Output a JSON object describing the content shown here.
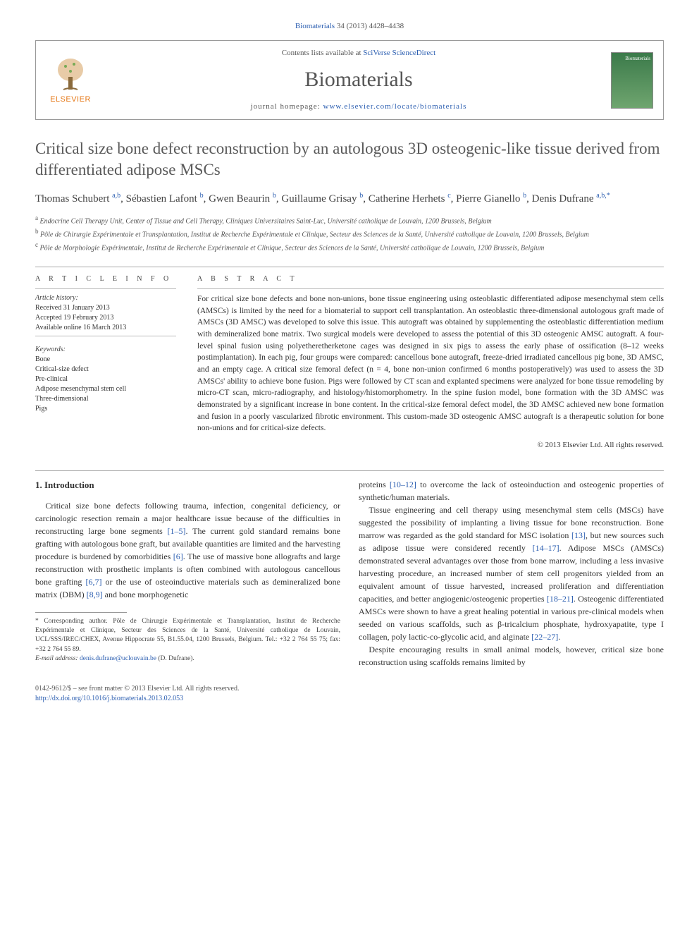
{
  "citation": {
    "journal_link": "Biomaterials",
    "vol_pages": " 34 (2013) 4428–4438"
  },
  "header": {
    "contents_prefix": "Contents lists available at ",
    "contents_link": "SciVerse ScienceDirect",
    "journal_name": "Biomaterials",
    "homepage_prefix": "journal homepage: ",
    "homepage_link": "www.elsevier.com/locate/biomaterials",
    "elsevier_label": "ELSEVIER",
    "cover_label": "Biomaterials"
  },
  "title": "Critical size bone defect reconstruction by an autologous 3D osteogenic-like tissue derived from differentiated adipose MSCs",
  "authors_html": "Thomas Schubert <sup>a,b</sup>, Sébastien Lafont <sup>b</sup>, Gwen Beaurin <sup>b</sup>, Guillaume Grisay <sup>b</sup>, Catherine Herhets <sup>c</sup>, Pierre Gianello <sup>b</sup>, Denis Dufrane <sup>a,b,*</sup>",
  "affiliations": {
    "a": "Endocrine Cell Therapy Unit, Center of Tissue and Cell Therapy, Cliniques Universitaires Saint-Luc, Université catholique de Louvain, 1200 Brussels, Belgium",
    "b": "Pôle de Chirurgie Expérimentale et Transplantation, Institut de Recherche Expérimentale et Clinique, Secteur des Sciences de la Santé, Université catholique de Louvain, 1200 Brussels, Belgium",
    "c": "Pôle de Morphologie Expérimentale, Institut de Recherche Expérimentale et Clinique, Secteur des Sciences de la Santé, Université catholique de Louvain, 1200 Brussels, Belgium"
  },
  "article_info": {
    "heading": "A R T I C L E  I N F O",
    "history_label": "Article history:",
    "received": "Received 31 January 2013",
    "accepted": "Accepted 19 February 2013",
    "online": "Available online 16 March 2013",
    "keywords_label": "Keywords:",
    "keywords": [
      "Bone",
      "Critical-size defect",
      "Pre-clinical",
      "Adipose mesenchymal stem cell",
      "Three-dimensional",
      "Pigs"
    ]
  },
  "abstract": {
    "heading": "A B S T R A C T",
    "text": "For critical size bone defects and bone non-unions, bone tissue engineering using osteoblastic differentiated adipose mesenchymal stem cells (AMSCs) is limited by the need for a biomaterial to support cell transplantation. An osteoblastic three-dimensional autologous graft made of AMSCs (3D AMSC) was developed to solve this issue. This autograft was obtained by supplementing the osteoblastic differentiation medium with demineralized bone matrix. Two surgical models were developed to assess the potential of this 3D osteogenic AMSC autograft. A four-level spinal fusion using polyetheretherketone cages was designed in six pigs to assess the early phase of ossification (8–12 weeks postimplantation). In each pig, four groups were compared: cancellous bone autograft, freeze-dried irradiated cancellous pig bone, 3D AMSC, and an empty cage. A critical size femoral defect (n = 4, bone non-union confirmed 6 months postoperatively) was used to assess the 3D AMSCs' ability to achieve bone fusion. Pigs were followed by CT scan and explanted specimens were analyzed for bone tissue remodeling by micro-CT scan, micro-radiography, and histology/histomorphometry. In the spine fusion model, bone formation with the 3D AMSC was demonstrated by a significant increase in bone content. In the critical-size femoral defect model, the 3D AMSC achieved new bone formation and fusion in a poorly vascularized fibrotic environment. This custom-made 3D osteogenic AMSC autograft is a therapeutic solution for bone non-unions and for critical-size defects.",
    "copyright": "© 2013 Elsevier Ltd. All rights reserved."
  },
  "intro": {
    "heading": "1. Introduction",
    "p1_a": "Critical size bone defects following trauma, infection, congenital deficiency, or carcinologic resection remain a major healthcare issue because of the difficulties in reconstructing large bone segments ",
    "p1_ref1": "[1–5]",
    "p1_b": ". The current gold standard remains bone grafting with autologous bone graft, but available quantities are limited and the harvesting procedure is burdened by comorbidities ",
    "p1_ref2": "[6]",
    "p1_c": ". The use of massive bone allografts and large reconstruction with prosthetic implants is often combined with autologous cancellous bone grafting ",
    "p1_ref3": "[6,7]",
    "p1_d": " or the use of osteoinductive materials such as demineralized bone matrix (DBM) ",
    "p1_ref4": "[8,9]",
    "p1_e": " and bone morphogenetic",
    "p2_a": "proteins ",
    "p2_ref1": "[10–12]",
    "p2_b": " to overcome the lack of osteoinduction and osteogenic properties of synthetic/human materials.",
    "p3_a": "Tissue engineering and cell therapy using mesenchymal stem cells (MSCs) have suggested the possibility of implanting a living tissue for bone reconstruction. Bone marrow was regarded as the gold standard for MSC isolation ",
    "p3_ref1": "[13]",
    "p3_b": ", but new sources such as adipose tissue were considered recently ",
    "p3_ref2": "[14–17]",
    "p3_c": ". Adipose MSCs (AMSCs) demonstrated several advantages over those from bone marrow, including a less invasive harvesting procedure, an increased number of stem cell progenitors yielded from an equivalent amount of tissue harvested, increased proliferation and differentiation capacities, and better angiogenic/osteogenic properties ",
    "p3_ref3": "[18–21]",
    "p3_d": ". Osteogenic differentiated AMSCs were shown to have a great healing potential in various pre-clinical models when seeded on various scaffolds, such as β-tricalcium phosphate, hydroxyapatite, type I collagen, poly lactic-co-glycolic acid, and alginate ",
    "p3_ref4": "[22–27]",
    "p3_e": ".",
    "p4": "Despite encouraging results in small animal models, however, critical size bone reconstruction using scaffolds remains limited by"
  },
  "footnote": {
    "corr": "* Corresponding author. Pôle de Chirurgie Expérimentale et Transplantation, Institut de Recherche Expérimentale et Clinique, Secteur des Sciences de la Santé, Université catholique de Louvain, UCL/SSS/IREC/CHEX, Avenue Hippocrate 55, B1.55.04, 1200 Brussels, Belgium. Tel.: +32 2 764 55 75; fax: +32 2 764 55 89.",
    "email_label": "E-mail address: ",
    "email": "denis.dufrane@uclouvain.be",
    "email_suffix": " (D. Dufrane)."
  },
  "bottom": {
    "left_line1": "0142-9612/$ – see front matter © 2013 Elsevier Ltd. All rights reserved.",
    "doi": "http://dx.doi.org/10.1016/j.biomaterials.2013.02.053"
  },
  "colors": {
    "link": "#2a5db0",
    "elsevier_orange": "#e67817",
    "text_gray": "#555555",
    "border_gray": "#999999"
  }
}
